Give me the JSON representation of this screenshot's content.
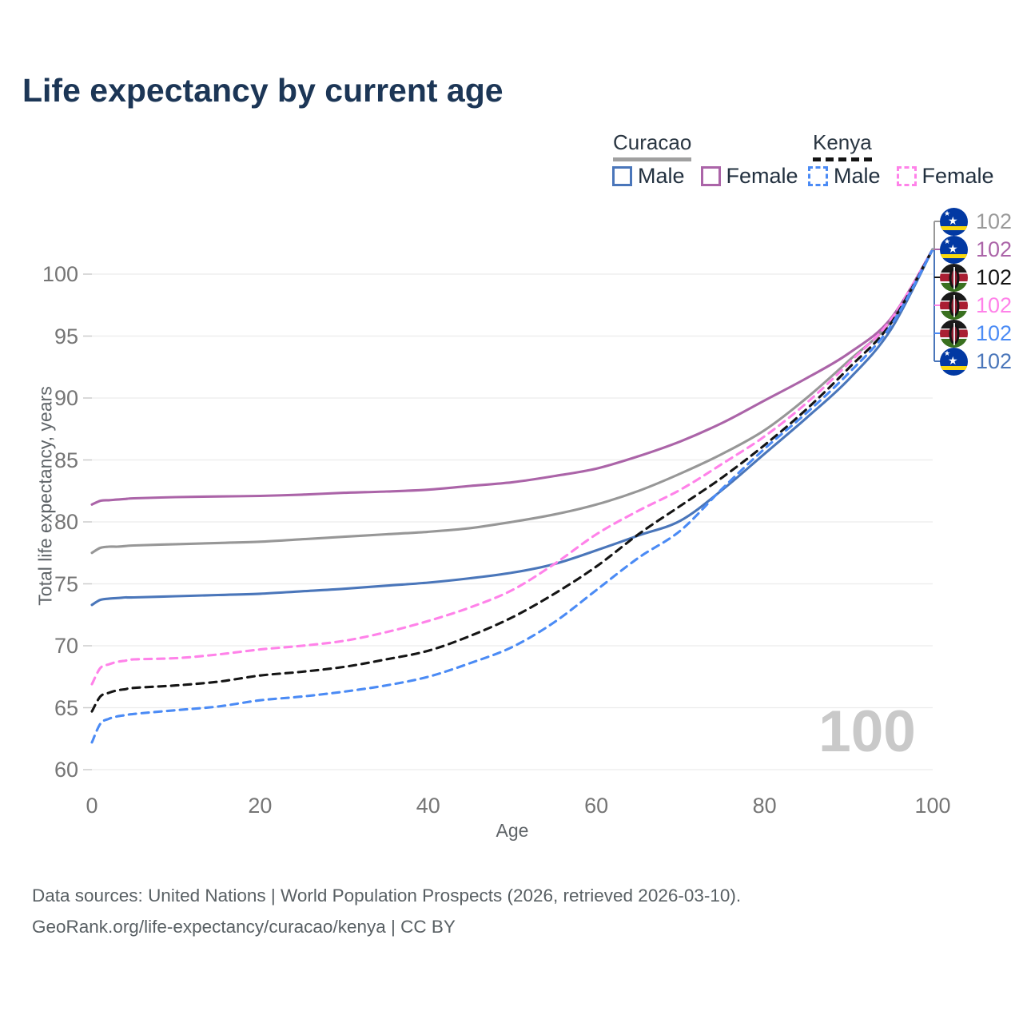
{
  "title": "Life expectancy by current age",
  "legend": {
    "groups": [
      {
        "name": "Curacao",
        "line_style": "solid",
        "underline_color": "#a0a0a0",
        "items": [
          {
            "label": "Male",
            "color": "#4a76ba"
          },
          {
            "label": "Female",
            "color": "#ab64a8"
          }
        ]
      },
      {
        "name": "Kenya",
        "line_style": "dashed",
        "underline_color": "#141414",
        "items": [
          {
            "label": "Male",
            "color": "#4b8bf5"
          },
          {
            "label": "Female",
            "color": "#ff82e9"
          }
        ]
      }
    ]
  },
  "axes": {
    "x": {
      "label": "Age",
      "ticks": [
        0,
        20,
        40,
        60,
        80,
        100
      ],
      "range": [
        0,
        100
      ]
    },
    "y": {
      "label": "Total life expectancy, years",
      "ticks": [
        60,
        65,
        70,
        75,
        80,
        85,
        90,
        95,
        100
      ],
      "range": [
        60,
        103
      ]
    }
  },
  "watermark": "100",
  "end_labels": [
    {
      "flag": "curacao",
      "value": "102",
      "color": "#999999"
    },
    {
      "flag": "curacao",
      "value": "102",
      "color": "#ab64a8"
    },
    {
      "flag": "kenya",
      "value": "102",
      "color": "#141414"
    },
    {
      "flag": "kenya",
      "value": "102",
      "color": "#ff82e9"
    },
    {
      "flag": "kenya",
      "value": "102",
      "color": "#4b8bf5"
    },
    {
      "flag": "curacao",
      "value": "102",
      "color": "#4a76ba"
    }
  ],
  "footer": {
    "line1": "Data sources: United Nations | World Population Prospects (2026, retrieved 2026-03-10).",
    "line2": "GeoRank.org/life-expectancy/curacao/kenya | CC BY"
  },
  "chart_data": {
    "type": "line",
    "title": "Life expectancy by current age",
    "xlabel": "Age",
    "ylabel": "Total life expectancy, years",
    "xlim": [
      0,
      100
    ],
    "ylim": [
      60,
      103
    ],
    "grid": "horizontal",
    "x": [
      0,
      1,
      2,
      3,
      4,
      5,
      10,
      15,
      20,
      25,
      30,
      35,
      40,
      45,
      50,
      55,
      60,
      65,
      70,
      75,
      80,
      85,
      90,
      95,
      100
    ],
    "series": [
      {
        "name": "Curacao Male",
        "country": "Curacao",
        "sex": "male",
        "color": "#4a76ba",
        "dash": "solid",
        "values": [
          73.3,
          73.7,
          73.8,
          73.85,
          73.9,
          73.9,
          74.0,
          74.1,
          74.2,
          74.4,
          74.6,
          74.85,
          75.1,
          75.45,
          75.9,
          76.6,
          77.7,
          78.9,
          80.1,
          82.6,
          85.5,
          88.4,
          91.5,
          95.5,
          102
        ]
      },
      {
        "name": "Curacao All",
        "country": "Curacao",
        "sex": "all",
        "color": "#979797",
        "dash": "solid",
        "values": [
          77.5,
          77.9,
          78.0,
          78.0,
          78.05,
          78.1,
          78.2,
          78.3,
          78.4,
          78.6,
          78.8,
          79.0,
          79.2,
          79.5,
          80.0,
          80.6,
          81.4,
          82.5,
          83.9,
          85.5,
          87.4,
          90.0,
          93.0,
          96.2,
          102
        ]
      },
      {
        "name": "Curacao Female",
        "country": "Curacao",
        "sex": "female",
        "color": "#ab64a8",
        "dash": "solid",
        "values": [
          81.4,
          81.7,
          81.75,
          81.8,
          81.85,
          81.9,
          82.0,
          82.05,
          82.1,
          82.2,
          82.35,
          82.45,
          82.6,
          82.9,
          83.2,
          83.7,
          84.3,
          85.3,
          86.5,
          88.0,
          89.8,
          91.6,
          93.6,
          96.4,
          102
        ]
      },
      {
        "name": "Kenya Female",
        "country": "Kenya",
        "sex": "female",
        "color": "#ff82e9",
        "dash": "dashed",
        "values": [
          66.9,
          68.2,
          68.5,
          68.7,
          68.8,
          68.9,
          69.0,
          69.3,
          69.7,
          70.0,
          70.4,
          71.1,
          72.0,
          73.1,
          74.5,
          76.6,
          79.0,
          80.9,
          82.6,
          84.7,
          86.9,
          89.6,
          92.8,
          96.3,
          102
        ]
      },
      {
        "name": "Kenya All",
        "country": "Kenya",
        "sex": "all",
        "color": "#151515",
        "dash": "dashed",
        "values": [
          64.7,
          65.9,
          66.2,
          66.4,
          66.5,
          66.6,
          66.8,
          67.1,
          67.6,
          67.9,
          68.3,
          68.9,
          69.6,
          70.8,
          72.3,
          74.2,
          76.4,
          79.0,
          81.3,
          83.6,
          86.2,
          89.1,
          92.4,
          96.0,
          102
        ]
      },
      {
        "name": "Kenya Male",
        "country": "Kenya",
        "sex": "male",
        "color": "#4b8bf5",
        "dash": "dashed",
        "values": [
          62.2,
          63.7,
          64.1,
          64.3,
          64.4,
          64.5,
          64.8,
          65.1,
          65.6,
          65.9,
          66.3,
          66.8,
          67.5,
          68.6,
          69.9,
          71.9,
          74.5,
          77.1,
          79.3,
          82.7,
          85.9,
          88.8,
          92.0,
          95.8,
          102
        ]
      }
    ],
    "end_value_label": 102
  }
}
